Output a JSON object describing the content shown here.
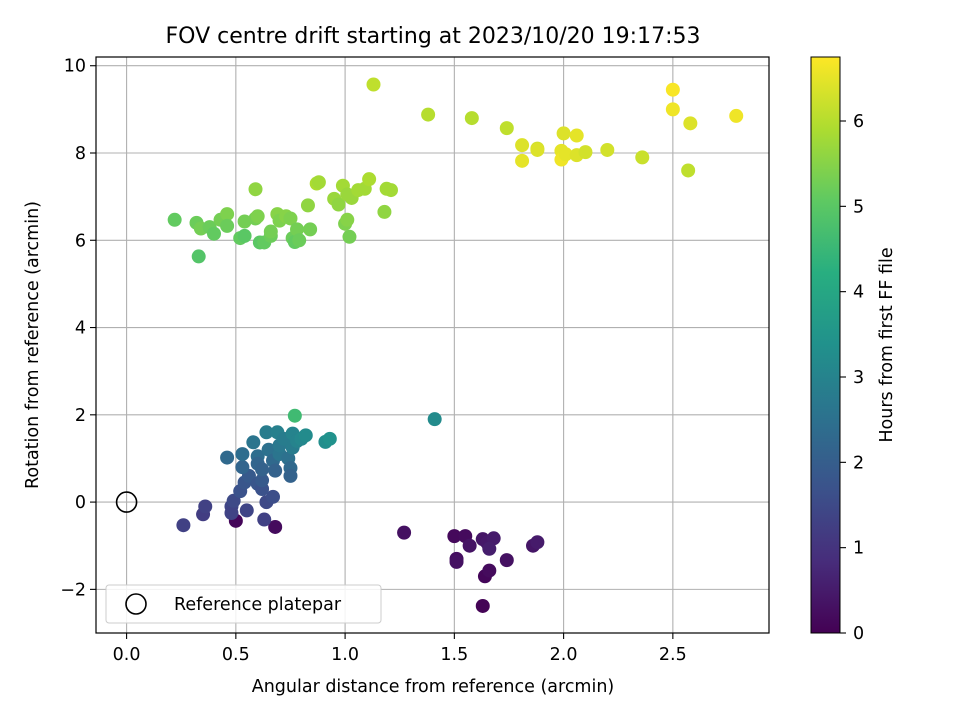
{
  "chart_data": {
    "type": "scatter",
    "title": "FOV centre drift starting at 2023/10/20 19:17:53",
    "xlabel": "Angular distance from reference (arcmin)",
    "ylabel": "Rotation from reference (arcmin)",
    "xlim": [
      -0.14,
      2.94
    ],
    "ylim": [
      -3.0,
      10.2
    ],
    "xticks": [
      0.0,
      0.5,
      1.0,
      1.5,
      2.0,
      2.5
    ],
    "xtick_labels": [
      "0.0",
      "0.5",
      "1.0",
      "1.5",
      "2.0",
      "2.5"
    ],
    "yticks": [
      -2,
      0,
      2,
      4,
      6,
      8,
      10
    ],
    "ytick_labels": [
      "−2",
      "0",
      "2",
      "4",
      "6",
      "8",
      "10"
    ],
    "grid": true,
    "legend": {
      "placement": "lower-left",
      "entries": [
        "Reference platepar"
      ]
    },
    "colorbar": {
      "label": "Hours from first FF file",
      "colormap": "viridis",
      "range": [
        0,
        6.75
      ],
      "ticks": [
        0,
        1,
        2,
        3,
        4,
        5,
        6
      ],
      "tick_labels": [
        "0",
        "1",
        "2",
        "3",
        "4",
        "5",
        "6"
      ]
    },
    "reference_point": {
      "x": 0.0,
      "y": 0.0,
      "label": "Reference platepar"
    },
    "series": [
      {
        "points": [
          {
            "x": 0.5,
            "y": -0.43,
            "c": 0.1
          },
          {
            "x": 0.68,
            "y": -0.57,
            "c": 0.2
          },
          {
            "x": 1.27,
            "y": -0.7,
            "c": 0.3
          },
          {
            "x": 1.5,
            "y": -0.78,
            "c": 0.15
          },
          {
            "x": 1.55,
            "y": -0.78,
            "c": 0.2
          },
          {
            "x": 1.51,
            "y": -1.3,
            "c": 0.25
          },
          {
            "x": 1.51,
            "y": -1.37,
            "c": 0.3
          },
          {
            "x": 1.57,
            "y": -1.0,
            "c": 0.35
          },
          {
            "x": 1.63,
            "y": -0.85,
            "c": 0.4
          },
          {
            "x": 1.65,
            "y": -0.93,
            "c": 0.45
          },
          {
            "x": 1.68,
            "y": -0.83,
            "c": 0.5
          },
          {
            "x": 1.66,
            "y": -1.07,
            "c": 0.55
          },
          {
            "x": 1.64,
            "y": -1.7,
            "c": 0.1
          },
          {
            "x": 1.66,
            "y": -1.57,
            "c": 0.2
          },
          {
            "x": 1.63,
            "y": -2.38,
            "c": 0.05
          },
          {
            "x": 1.74,
            "y": -1.33,
            "c": 0.3
          },
          {
            "x": 1.86,
            "y": -1.0,
            "c": 0.4
          },
          {
            "x": 1.88,
            "y": -0.92,
            "c": 0.5
          },
          {
            "x": 0.26,
            "y": -0.53,
            "c": 1.3
          },
          {
            "x": 0.35,
            "y": -0.28,
            "c": 1.2
          },
          {
            "x": 0.36,
            "y": -0.1,
            "c": 1.3
          },
          {
            "x": 0.48,
            "y": -0.1,
            "c": 1.4
          },
          {
            "x": 0.48,
            "y": -0.25,
            "c": 1.35
          },
          {
            "x": 0.49,
            "y": 0.03,
            "c": 1.5
          },
          {
            "x": 0.55,
            "y": -0.19,
            "c": 1.4
          },
          {
            "x": 0.63,
            "y": -0.4,
            "c": 1.3
          },
          {
            "x": 0.64,
            "y": 0.0,
            "c": 1.5
          },
          {
            "x": 0.67,
            "y": 0.12,
            "c": 1.6
          },
          {
            "x": 0.52,
            "y": 0.25,
            "c": 1.7
          },
          {
            "x": 0.54,
            "y": 0.45,
            "c": 1.8
          },
          {
            "x": 0.56,
            "y": 0.6,
            "c": 1.9
          },
          {
            "x": 0.6,
            "y": 0.42,
            "c": 1.8
          },
          {
            "x": 0.62,
            "y": 0.3,
            "c": 1.7
          },
          {
            "x": 0.62,
            "y": 0.5,
            "c": 1.9
          },
          {
            "x": 0.46,
            "y": 1.02,
            "c": 2.3
          },
          {
            "x": 0.53,
            "y": 0.8,
            "c": 2.2
          },
          {
            "x": 0.53,
            "y": 1.1,
            "c": 2.4
          },
          {
            "x": 0.58,
            "y": 1.37,
            "c": 2.6
          },
          {
            "x": 0.6,
            "y": 1.05,
            "c": 2.4
          },
          {
            "x": 0.6,
            "y": 0.88,
            "c": 2.2
          },
          {
            "x": 0.62,
            "y": 0.75,
            "c": 2.1
          },
          {
            "x": 0.64,
            "y": 1.6,
            "c": 2.8
          },
          {
            "x": 0.65,
            "y": 1.2,
            "c": 2.5
          },
          {
            "x": 0.67,
            "y": 0.95,
            "c": 2.3
          },
          {
            "x": 0.68,
            "y": 0.72,
            "c": 2.1
          },
          {
            "x": 0.69,
            "y": 1.6,
            "c": 2.9
          },
          {
            "x": 0.7,
            "y": 1.1,
            "c": 2.6
          },
          {
            "x": 0.7,
            "y": 1.3,
            "c": 2.7
          },
          {
            "x": 0.72,
            "y": 1.45,
            "c": 2.8
          },
          {
            "x": 0.74,
            "y": 1.0,
            "c": 2.5
          },
          {
            "x": 0.75,
            "y": 0.78,
            "c": 2.3
          },
          {
            "x": 0.75,
            "y": 0.6,
            "c": 2.1
          },
          {
            "x": 0.76,
            "y": 1.57,
            "c": 3.0
          },
          {
            "x": 0.76,
            "y": 1.25,
            "c": 2.8
          },
          {
            "x": 0.78,
            "y": 1.4,
            "c": 3.0
          },
          {
            "x": 0.8,
            "y": 1.45,
            "c": 3.1
          },
          {
            "x": 0.82,
            "y": 1.53,
            "c": 3.2
          },
          {
            "x": 0.91,
            "y": 1.38,
            "c": 3.3
          },
          {
            "x": 0.93,
            "y": 1.45,
            "c": 3.4
          },
          {
            "x": 1.41,
            "y": 1.9,
            "c": 3.2
          },
          {
            "x": 0.77,
            "y": 1.98,
            "c": 4.6
          },
          {
            "x": 0.22,
            "y": 6.47,
            "c": 5.1
          },
          {
            "x": 0.32,
            "y": 6.4,
            "c": 5.2
          },
          {
            "x": 0.33,
            "y": 5.63,
            "c": 4.9
          },
          {
            "x": 0.34,
            "y": 6.27,
            "c": 5.3
          },
          {
            "x": 0.38,
            "y": 6.3,
            "c": 5.2
          },
          {
            "x": 0.4,
            "y": 6.15,
            "c": 5.1
          },
          {
            "x": 0.43,
            "y": 6.47,
            "c": 5.3
          },
          {
            "x": 0.46,
            "y": 6.6,
            "c": 5.4
          },
          {
            "x": 0.46,
            "y": 6.33,
            "c": 5.2
          },
          {
            "x": 0.52,
            "y": 6.05,
            "c": 5.1
          },
          {
            "x": 0.54,
            "y": 6.1,
            "c": 5.0
          },
          {
            "x": 0.54,
            "y": 6.43,
            "c": 5.3
          },
          {
            "x": 0.59,
            "y": 7.17,
            "c": 5.6
          },
          {
            "x": 0.59,
            "y": 6.5,
            "c": 5.3
          },
          {
            "x": 0.6,
            "y": 6.55,
            "c": 5.4
          },
          {
            "x": 0.61,
            "y": 5.95,
            "c": 5.0
          },
          {
            "x": 0.63,
            "y": 5.95,
            "c": 5.1
          },
          {
            "x": 0.66,
            "y": 6.1,
            "c": 5.2
          },
          {
            "x": 0.66,
            "y": 6.2,
            "c": 5.3
          },
          {
            "x": 0.69,
            "y": 6.6,
            "c": 5.5
          },
          {
            "x": 0.7,
            "y": 6.45,
            "c": 5.4
          },
          {
            "x": 0.73,
            "y": 6.55,
            "c": 5.5
          },
          {
            "x": 0.75,
            "y": 6.5,
            "c": 5.4
          },
          {
            "x": 0.76,
            "y": 6.05,
            "c": 5.2
          },
          {
            "x": 0.77,
            "y": 5.96,
            "c": 5.1
          },
          {
            "x": 0.78,
            "y": 6.25,
            "c": 5.3
          },
          {
            "x": 0.79,
            "y": 6.0,
            "c": 5.2
          },
          {
            "x": 0.83,
            "y": 6.8,
            "c": 5.6
          },
          {
            "x": 0.84,
            "y": 6.25,
            "c": 5.3
          },
          {
            "x": 0.87,
            "y": 7.3,
            "c": 5.9
          },
          {
            "x": 0.88,
            "y": 7.33,
            "c": 5.8
          },
          {
            "x": 0.95,
            "y": 6.95,
            "c": 5.7
          },
          {
            "x": 0.97,
            "y": 6.82,
            "c": 5.6
          },
          {
            "x": 0.99,
            "y": 7.25,
            "c": 5.8
          },
          {
            "x": 1.0,
            "y": 6.38,
            "c": 5.4
          },
          {
            "x": 1.01,
            "y": 6.47,
            "c": 5.5
          },
          {
            "x": 1.01,
            "y": 7.05,
            "c": 5.7
          },
          {
            "x": 1.02,
            "y": 6.08,
            "c": 5.3
          },
          {
            "x": 1.03,
            "y": 6.97,
            "c": 5.7
          },
          {
            "x": 1.06,
            "y": 7.15,
            "c": 5.8
          },
          {
            "x": 1.09,
            "y": 7.18,
            "c": 5.8
          },
          {
            "x": 1.11,
            "y": 7.4,
            "c": 5.9
          },
          {
            "x": 1.18,
            "y": 6.65,
            "c": 5.6
          },
          {
            "x": 1.19,
            "y": 7.18,
            "c": 5.8
          },
          {
            "x": 1.21,
            "y": 7.15,
            "c": 5.8
          },
          {
            "x": 1.13,
            "y": 9.57,
            "c": 6.1
          },
          {
            "x": 1.38,
            "y": 8.88,
            "c": 6.0
          },
          {
            "x": 1.58,
            "y": 8.8,
            "c": 6.0
          },
          {
            "x": 1.74,
            "y": 8.57,
            "c": 6.1
          },
          {
            "x": 1.81,
            "y": 7.82,
            "c": 6.5
          },
          {
            "x": 1.81,
            "y": 8.18,
            "c": 6.4
          },
          {
            "x": 1.88,
            "y": 8.1,
            "c": 6.3
          },
          {
            "x": 1.88,
            "y": 8.07,
            "c": 6.4
          },
          {
            "x": 1.99,
            "y": 8.05,
            "c": 6.5
          },
          {
            "x": 1.99,
            "y": 7.85,
            "c": 6.6
          },
          {
            "x": 2.0,
            "y": 8.45,
            "c": 6.4
          },
          {
            "x": 2.01,
            "y": 7.97,
            "c": 6.5
          },
          {
            "x": 2.06,
            "y": 7.95,
            "c": 6.4
          },
          {
            "x": 2.06,
            "y": 8.4,
            "c": 6.5
          },
          {
            "x": 2.1,
            "y": 8.02,
            "c": 6.3
          },
          {
            "x": 2.2,
            "y": 8.07,
            "c": 6.3
          },
          {
            "x": 2.36,
            "y": 7.9,
            "c": 6.2
          },
          {
            "x": 2.5,
            "y": 9.45,
            "c": 6.7
          },
          {
            "x": 2.5,
            "y": 9.0,
            "c": 6.6
          },
          {
            "x": 2.57,
            "y": 7.6,
            "c": 6.1
          },
          {
            "x": 2.58,
            "y": 8.68,
            "c": 6.4
          },
          {
            "x": 2.79,
            "y": 8.85,
            "c": 6.6
          }
        ]
      }
    ]
  }
}
